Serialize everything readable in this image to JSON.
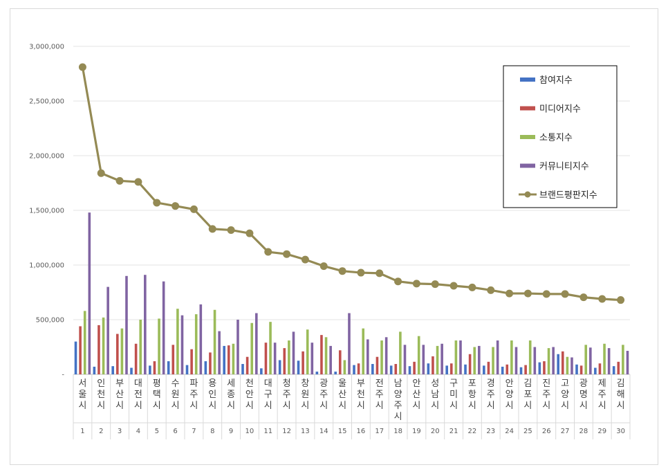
{
  "chart_data": {
    "type": "bar",
    "ylim": [
      0,
      3000000
    ],
    "y_ticks": [
      "-",
      "500,000",
      "1,000,000",
      "1,500,000",
      "2,000,000",
      "2,500,000",
      "3,000,000"
    ],
    "y_tick_values": [
      0,
      500000,
      1000000,
      1500000,
      2000000,
      2500000,
      3000000
    ],
    "grid": true,
    "legend_position": "top-right",
    "categories": [
      "서울시",
      "인천시",
      "부산시",
      "대전시",
      "평택시",
      "수원시",
      "파주시",
      "용인시",
      "세종시",
      "천안시",
      "대구시",
      "청주시",
      "창원시",
      "광주시",
      "울산시",
      "부천시",
      "전주시",
      "남양주시",
      "안산시",
      "성남시",
      "구미시",
      "포항시",
      "경주시",
      "안양시",
      "김포시",
      "진주시",
      "고양시",
      "광명시",
      "제주시",
      "김해시"
    ],
    "ranks": [
      "1",
      "2",
      "3",
      "4",
      "5",
      "6",
      "7",
      "8",
      "9",
      "10",
      "11",
      "12",
      "13",
      "14",
      "15",
      "16",
      "17",
      "18",
      "19",
      "20",
      "21",
      "22",
      "23",
      "24",
      "25",
      "26",
      "27",
      "28",
      "29",
      "30"
    ],
    "series": [
      {
        "name": "참여지수",
        "kind": "bar",
        "color": "#4472c4",
        "values": [
          300000,
          70000,
          75000,
          60000,
          80000,
          120000,
          85000,
          120000,
          260000,
          95000,
          55000,
          130000,
          125000,
          25000,
          25000,
          85000,
          95000,
          80000,
          75000,
          100000,
          80000,
          90000,
          80000,
          70000,
          65000,
          110000,
          185000,
          90000,
          60000,
          75000
        ]
      },
      {
        "name": "미디어지수",
        "kind": "bar",
        "color": "#c0504d",
        "values": [
          440000,
          450000,
          370000,
          280000,
          120000,
          270000,
          230000,
          200000,
          265000,
          160000,
          290000,
          240000,
          210000,
          360000,
          220000,
          100000,
          160000,
          95000,
          115000,
          165000,
          100000,
          185000,
          115000,
          90000,
          85000,
          120000,
          210000,
          80000,
          100000,
          115000
        ]
      },
      {
        "name": "소통지수",
        "kind": "bar",
        "color": "#9bbb59",
        "values": [
          580000,
          520000,
          420000,
          500000,
          510000,
          600000,
          550000,
          590000,
          280000,
          470000,
          480000,
          310000,
          410000,
          340000,
          130000,
          420000,
          310000,
          390000,
          350000,
          260000,
          310000,
          250000,
          250000,
          310000,
          310000,
          240000,
          160000,
          270000,
          280000,
          270000
        ]
      },
      {
        "name": "커뮤니티지수",
        "kind": "bar",
        "color": "#8064a2",
        "values": [
          1480000,
          800000,
          900000,
          910000,
          850000,
          540000,
          640000,
          395000,
          500000,
          560000,
          290000,
          390000,
          290000,
          260000,
          560000,
          320000,
          340000,
          270000,
          270000,
          280000,
          310000,
          260000,
          310000,
          250000,
          250000,
          250000,
          155000,
          245000,
          240000,
          215000
        ]
      },
      {
        "name": "브랜드평판지수",
        "kind": "line",
        "color": "#948a54",
        "values": [
          2810000,
          1840000,
          1770000,
          1760000,
          1570000,
          1540000,
          1510000,
          1330000,
          1320000,
          1290000,
          1120000,
          1100000,
          1050000,
          990000,
          945000,
          930000,
          925000,
          850000,
          830000,
          825000,
          810000,
          795000,
          770000,
          740000,
          740000,
          735000,
          735000,
          705000,
          690000,
          680000
        ]
      }
    ]
  }
}
